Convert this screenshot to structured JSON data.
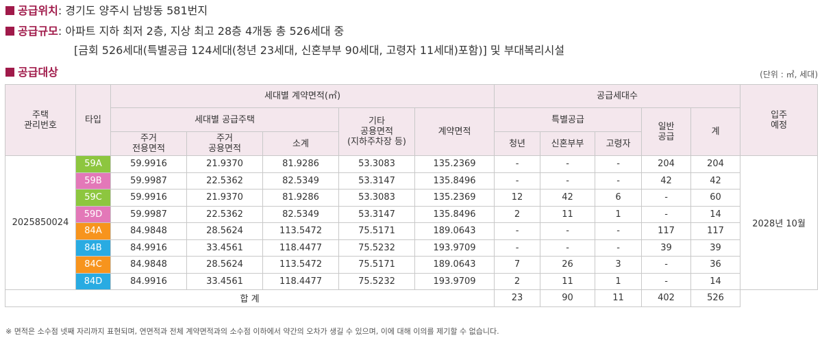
{
  "info": {
    "location": {
      "label": "공급위치",
      "text": ": 경기도 양주시 남방동 581번지"
    },
    "scale": {
      "label": "공급규모",
      "text": ": 아파트 지하 최저 2층, 지상 최고 28층 4개동 총 526세대 중",
      "text2": "[금회 526세대(특별공급 124세대(청년 23세대, 신혼부부 90세대, 고령자 11세대)포함)] 및 부대복리시설"
    },
    "target": {
      "label": "공급대상"
    }
  },
  "unit": "(단위 : ㎡, 세대)",
  "table": {
    "headers": {
      "house_no": "주택\n관리번호",
      "type": "타입",
      "area_group": "세대별 계약면적(㎡)",
      "supply_group": "공급세대수",
      "move_in": "입주\n예정",
      "household_supply": "세대별 공급주택",
      "other_common": "기타\n공용면적\n(지하주차장 등)",
      "contract_area": "계약면적",
      "special": "특별공급",
      "general": "일반\n공급",
      "total": "계",
      "exclusive": "주거\n전용면적",
      "common": "주거\n공용면적",
      "subtotal": "소계",
      "youth": "청년",
      "newlywed": "신혼부부",
      "elderly": "고령자"
    },
    "house_no": "2025850024",
    "move_in": "2028년 10월",
    "rows": [
      {
        "type": "59A",
        "color": "green",
        "exclusive": "59.9916",
        "common": "21.9370",
        "subtotal": "81.9286",
        "other": "53.3083",
        "contract": "135.2369",
        "youth": "-",
        "newlywed": "-",
        "elderly": "-",
        "general": "204",
        "total": "204"
      },
      {
        "type": "59B",
        "color": "pink",
        "exclusive": "59.9987",
        "common": "22.5362",
        "subtotal": "82.5349",
        "other": "53.3147",
        "contract": "135.8496",
        "youth": "-",
        "newlywed": "-",
        "elderly": "-",
        "general": "42",
        "total": "42"
      },
      {
        "type": "59C",
        "color": "green",
        "exclusive": "59.9916",
        "common": "21.9370",
        "subtotal": "81.9286",
        "other": "53.3083",
        "contract": "135.2369",
        "youth": "12",
        "newlywed": "42",
        "elderly": "6",
        "general": "-",
        "total": "60"
      },
      {
        "type": "59D",
        "color": "pink",
        "exclusive": "59.9987",
        "common": "22.5362",
        "subtotal": "82.5349",
        "other": "53.3147",
        "contract": "135.8496",
        "youth": "2",
        "newlywed": "11",
        "elderly": "1",
        "general": "-",
        "total": "14"
      },
      {
        "type": "84A",
        "color": "orange",
        "exclusive": "84.9848",
        "common": "28.5624",
        "subtotal": "113.5472",
        "other": "75.5171",
        "contract": "189.0643",
        "youth": "-",
        "newlywed": "-",
        "elderly": "-",
        "general": "117",
        "total": "117"
      },
      {
        "type": "84B",
        "color": "blue",
        "exclusive": "84.9916",
        "common": "33.4561",
        "subtotal": "118.4477",
        "other": "75.5232",
        "contract": "193.9709",
        "youth": "-",
        "newlywed": "-",
        "elderly": "-",
        "general": "39",
        "total": "39"
      },
      {
        "type": "84C",
        "color": "orange",
        "exclusive": "84.9848",
        "common": "28.5624",
        "subtotal": "113.5472",
        "other": "75.5171",
        "contract": "189.0643",
        "youth": "7",
        "newlywed": "26",
        "elderly": "3",
        "general": "-",
        "total": "36"
      },
      {
        "type": "84D",
        "color": "blue",
        "exclusive": "84.9916",
        "common": "33.4561",
        "subtotal": "118.4477",
        "other": "75.5232",
        "contract": "193.9709",
        "youth": "2",
        "newlywed": "11",
        "elderly": "1",
        "general": "-",
        "total": "14"
      }
    ],
    "sum": {
      "label": "합 계",
      "youth": "23",
      "newlywed": "90",
      "elderly": "11",
      "general": "402",
      "total": "526"
    }
  },
  "note": "※ 면적은 소수점 넷째 자리까지 표현되며, 연면적과 전체 계약면적과의 소수점 이하에서 약간의 오차가 생길 수 있으며, 이에 대해 이의를 제기할 수 없습니다."
}
